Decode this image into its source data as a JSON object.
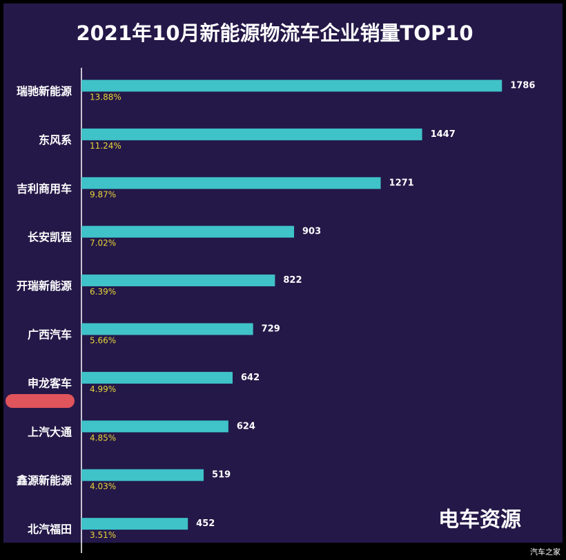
{
  "chart_data": {
    "type": "hbar",
    "title": "2021年10月新能源物流车企业销量TOP10",
    "categories": [
      "瑞驰新能源",
      "东风系",
      "吉利商用车",
      "长安凯程",
      "开瑞新能源",
      "广西汽车",
      "申龙客车",
      "上汽大通",
      "鑫源新能源",
      "北汽福田"
    ],
    "series": [
      {
        "color": "#3fc2c8",
        "values": [
          1786,
          1447,
          1271,
          903,
          822,
          729,
          642,
          624,
          519,
          452
        ]
      },
      {
        "color": "#e8d43a",
        "values": [
          13.88,
          11.24,
          9.87,
          7.02,
          6.39,
          5.66,
          4.99,
          4.85,
          4.03,
          3.51
        ],
        "value_labels": [
          "13.88%",
          "11.24%",
          "9.87%",
          "7.02%",
          "6.39%",
          "5.66%",
          "4.99%",
          "4.85%",
          "4.03%",
          "3.51%"
        ]
      }
    ],
    "xlim": [
      0,
      1800
    ],
    "annotations": [
      "电车资源",
      "汽车之家"
    ]
  }
}
